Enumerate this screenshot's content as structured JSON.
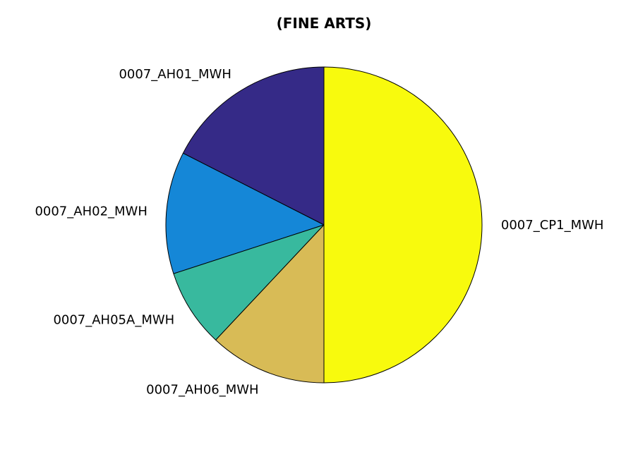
{
  "chart_data": {
    "type": "pie",
    "title": "(FINE ARTS)",
    "start_angle_deg": 90,
    "direction": "counterclockwise",
    "slices": [
      {
        "label": "0007_AH01_MWH",
        "value": 17.5,
        "color": "#352a87"
      },
      {
        "label": "0007_AH02_MWH",
        "value": 12.5,
        "color": "#1587d7"
      },
      {
        "label": "0007_AH05A_MWH",
        "value": 8.0,
        "color": "#38b99e"
      },
      {
        "label": "0007_AH06_MWH",
        "value": 12.0,
        "color": "#d8bb56"
      },
      {
        "label": "0007_CP1_MWH",
        "value": 50.0,
        "color": "#f8fa0d"
      }
    ]
  }
}
